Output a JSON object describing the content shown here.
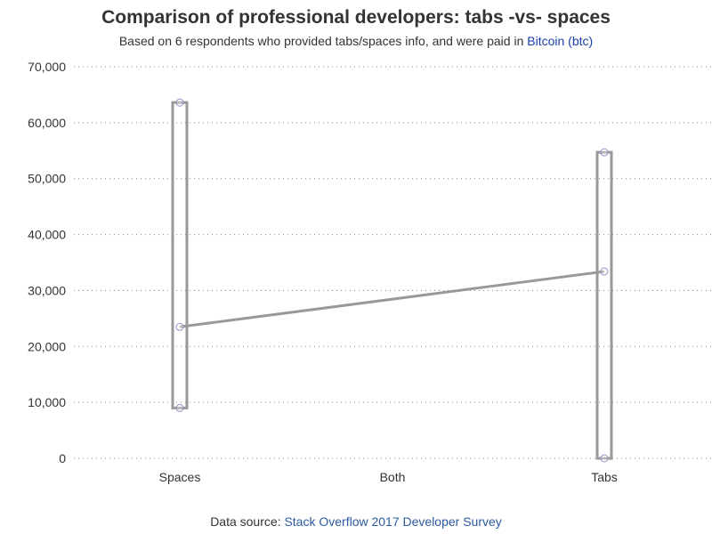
{
  "title": "Comparison of professional developers: tabs -vs- spaces",
  "subtitle": {
    "prefix": "Based on 6 respondents who provided tabs/spaces info, and were paid in ",
    "link": "Bitcoin (btc)"
  },
  "footer": {
    "prefix": "Data source: ",
    "link": "Stack Overflow 2017 Developer Survey"
  },
  "colors": {
    "box": "#999999",
    "marker": "#9a90c8",
    "grid": "#888888",
    "link": "#1a3fa8"
  },
  "chart_data": {
    "type": "box",
    "categories": [
      "Spaces",
      "Both",
      "Tabs"
    ],
    "ylim": [
      0,
      70000
    ],
    "yticks": [
      0,
      10000,
      20000,
      30000,
      40000,
      50000,
      60000,
      70000
    ],
    "ytick_labels": [
      "0",
      "10,000",
      "20,000",
      "30,000",
      "40,000",
      "50,000",
      "60,000",
      "70,000"
    ],
    "grid": "horizontal dotted",
    "ranges": [
      {
        "category": "Spaces",
        "min": 9000,
        "max": 63600,
        "median": 23500
      },
      {
        "category": "Tabs",
        "min": 0,
        "max": 54700,
        "median": 33400
      }
    ],
    "points": [
      {
        "category": "Spaces",
        "y": 63600
      },
      {
        "category": "Spaces",
        "y": 23500
      },
      {
        "category": "Spaces",
        "y": 9000
      },
      {
        "category": "Tabs",
        "y": 54700
      },
      {
        "category": "Tabs",
        "y": 33400
      },
      {
        "category": "Tabs",
        "y": 0
      }
    ]
  }
}
